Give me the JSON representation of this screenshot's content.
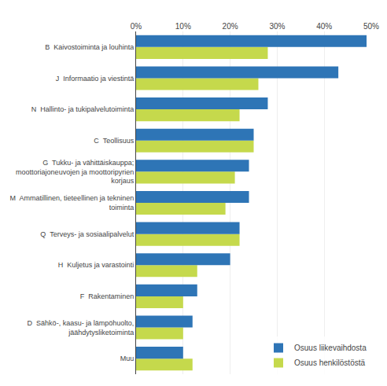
{
  "chart_data": {
    "type": "bar",
    "orientation": "horizontal",
    "categories": [
      "Muu",
      "D  Sähkö-, kaasu- ja lämpöhuolto,\n    jäähdytysliketoiminta",
      "F  Rakentaminen",
      "H  Kuljetus ja varastointi",
      "Q  Terveys- ja sosiaalipalvelut",
      "M  Ammatillinen, tieteellinen ja tekninen\n       toiminta",
      "G  Tukku- ja vähittäiskauppa;\n    moottoriajoneuvojen ja moottoripyrien\n       korjaus",
      "C  Teollisuus",
      "N  Hallinto- ja tukipalvelutoiminta",
      "J  Informaatio ja viestintä",
      "B  Kaivostoiminta ja louhinta"
    ],
    "series": [
      {
        "name": "Osuus liikevaihdosta",
        "color": "#2e75b6",
        "values": [
          10,
          12,
          13,
          20,
          22,
          24,
          24,
          25,
          28,
          43,
          49
        ]
      },
      {
        "name": "Osuus henkilöstöstä",
        "color": "#c5d94c",
        "values": [
          12,
          10,
          10,
          13,
          22,
          19,
          21,
          25,
          22,
          26,
          28
        ]
      }
    ],
    "xlim": [
      0,
      50
    ],
    "xticks": [
      {
        "value": 0,
        "label": "0%"
      },
      {
        "value": 10,
        "label": "10%"
      },
      {
        "value": 20,
        "label": "20%"
      },
      {
        "value": 30,
        "label": "30%"
      },
      {
        "value": 40,
        "label": "40%"
      },
      {
        "value": 50,
        "label": "50%"
      }
    ],
    "grid": true,
    "legend": "lower right"
  }
}
